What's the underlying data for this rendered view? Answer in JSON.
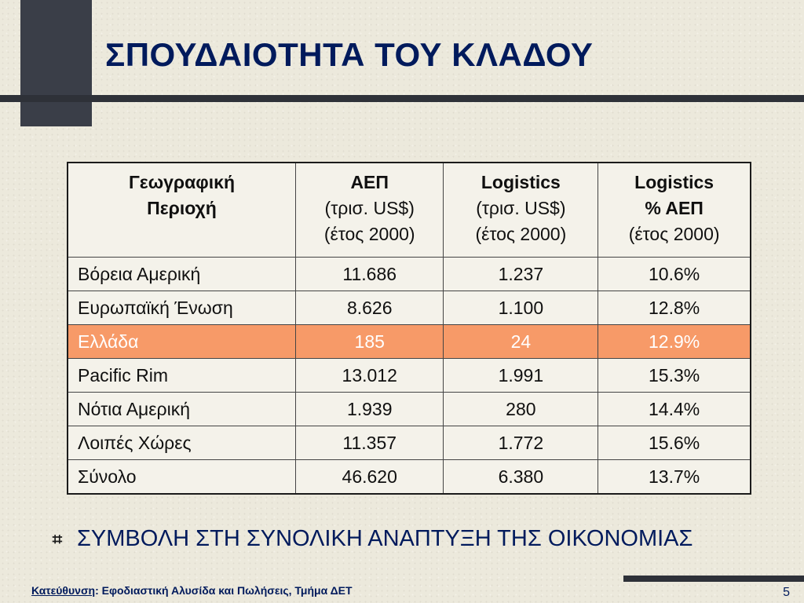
{
  "slide": {
    "title": "ΣΠΟΥΔΑΙΟΤΗΤΑ ΤΟΥ ΚΛΑΔΟΥ",
    "page_number": "5"
  },
  "table": {
    "headers": [
      {
        "lines": [
          "Γεωγραφική",
          "Περιοχή"
        ]
      },
      {
        "bold": "ΑΕΠ",
        "lines": [
          "(τρισ. US$)",
          "(έτος 2000)"
        ]
      },
      {
        "bold": "Logistics",
        "lines": [
          "(τρισ. US$)",
          "(έτος 2000)"
        ]
      },
      {
        "bold": "Logistics",
        "bold2": "% ΑΕΠ",
        "lines": [
          "(έτος 2000)"
        ]
      }
    ],
    "rows": [
      {
        "region": "Βόρεια Αμερική",
        "gdp": "11.686",
        "logistics": "1.237",
        "pct": "10.6%"
      },
      {
        "region": "Ευρωπαϊκή Ένωση",
        "gdp": "8.626",
        "logistics": "1.100",
        "pct": "12.8%"
      },
      {
        "region": "Ελλάδα",
        "gdp": "185",
        "logistics": "24",
        "pct": "12.9%"
      },
      {
        "region": "Pacific Rim",
        "gdp": "13.012",
        "logistics": "1.991",
        "pct": "15.3%"
      },
      {
        "region": "Νότια Αμερική",
        "gdp": "1.939",
        "logistics": "280",
        "pct": "14.4%"
      },
      {
        "region": "Λοιπές Χώρες",
        "gdp": "11.357",
        "logistics": "1.772",
        "pct": "15.6%"
      },
      {
        "region": "Σύνολο",
        "gdp": "46.620",
        "logistics": "6.380",
        "pct": "13.7%"
      }
    ],
    "highlight_color": "#f79a68"
  },
  "bullet": {
    "icon": "hash-bullet-icon",
    "glyph": "⌗",
    "text": "ΣΥΜΒΟΛΗ ΣΤΗ ΣΥΝΟΛΙΚΗ ΑΝΑΠΤΥΞΗ ΤΗΣ ΟΙΚΟΝΟΜΙΑΣ"
  },
  "footer": {
    "label": "Κατεύθυνση",
    "text": ": Εφοδιαστική Αλυσίδα και Πωλήσεις, Τμήμα ΔΕΤ"
  }
}
